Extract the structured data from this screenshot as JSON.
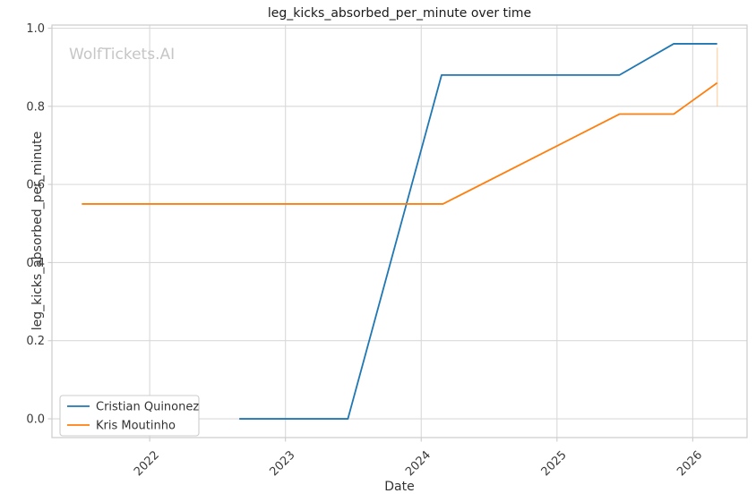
{
  "app": {
    "watermark": "WolfTickets.AI"
  },
  "chart_data": {
    "type": "line",
    "title": "leg_kicks_absorbed_per_minute over time",
    "xlabel": "Date",
    "ylabel": "leg_kicks_absorbed_per_minute",
    "watermark": "WolfTickets.AI",
    "grid": true,
    "legend_position": "lower left",
    "xlim": [
      2021.28,
      2026.4
    ],
    "ylim": [
      -0.048,
      1.008
    ],
    "xticks": [
      2022,
      2023,
      2024,
      2025,
      2026
    ],
    "yticks": [
      0.0,
      0.2,
      0.4,
      0.6,
      0.8,
      1.0
    ],
    "x_unit": "decimal_year",
    "series": [
      {
        "name": "Cristian Quinonez",
        "color": "#1f77b4",
        "x": [
          2022.66,
          2023.46,
          2024.15,
          2025.46,
          2025.86,
          2026.18
        ],
        "y": [
          0.0,
          0.0,
          0.88,
          0.88,
          0.96,
          0.96
        ]
      },
      {
        "name": "Kris Moutinho",
        "color": "#ff7f0e",
        "x": [
          2021.5,
          2024.16,
          2025.46,
          2025.86,
          2026.18
        ],
        "y": [
          0.55,
          0.55,
          0.78,
          0.78,
          0.86
        ],
        "error_bar": {
          "x": 2026.18,
          "y_low": 0.8,
          "y_high": 0.95
        }
      }
    ],
    "colors": {
      "grid": "#d9d9d9",
      "spine": "#cccccc",
      "text": "#333333",
      "blue": "#1f77b4",
      "orange": "#ff7f0e",
      "watermark": "#c6c6c6"
    }
  }
}
